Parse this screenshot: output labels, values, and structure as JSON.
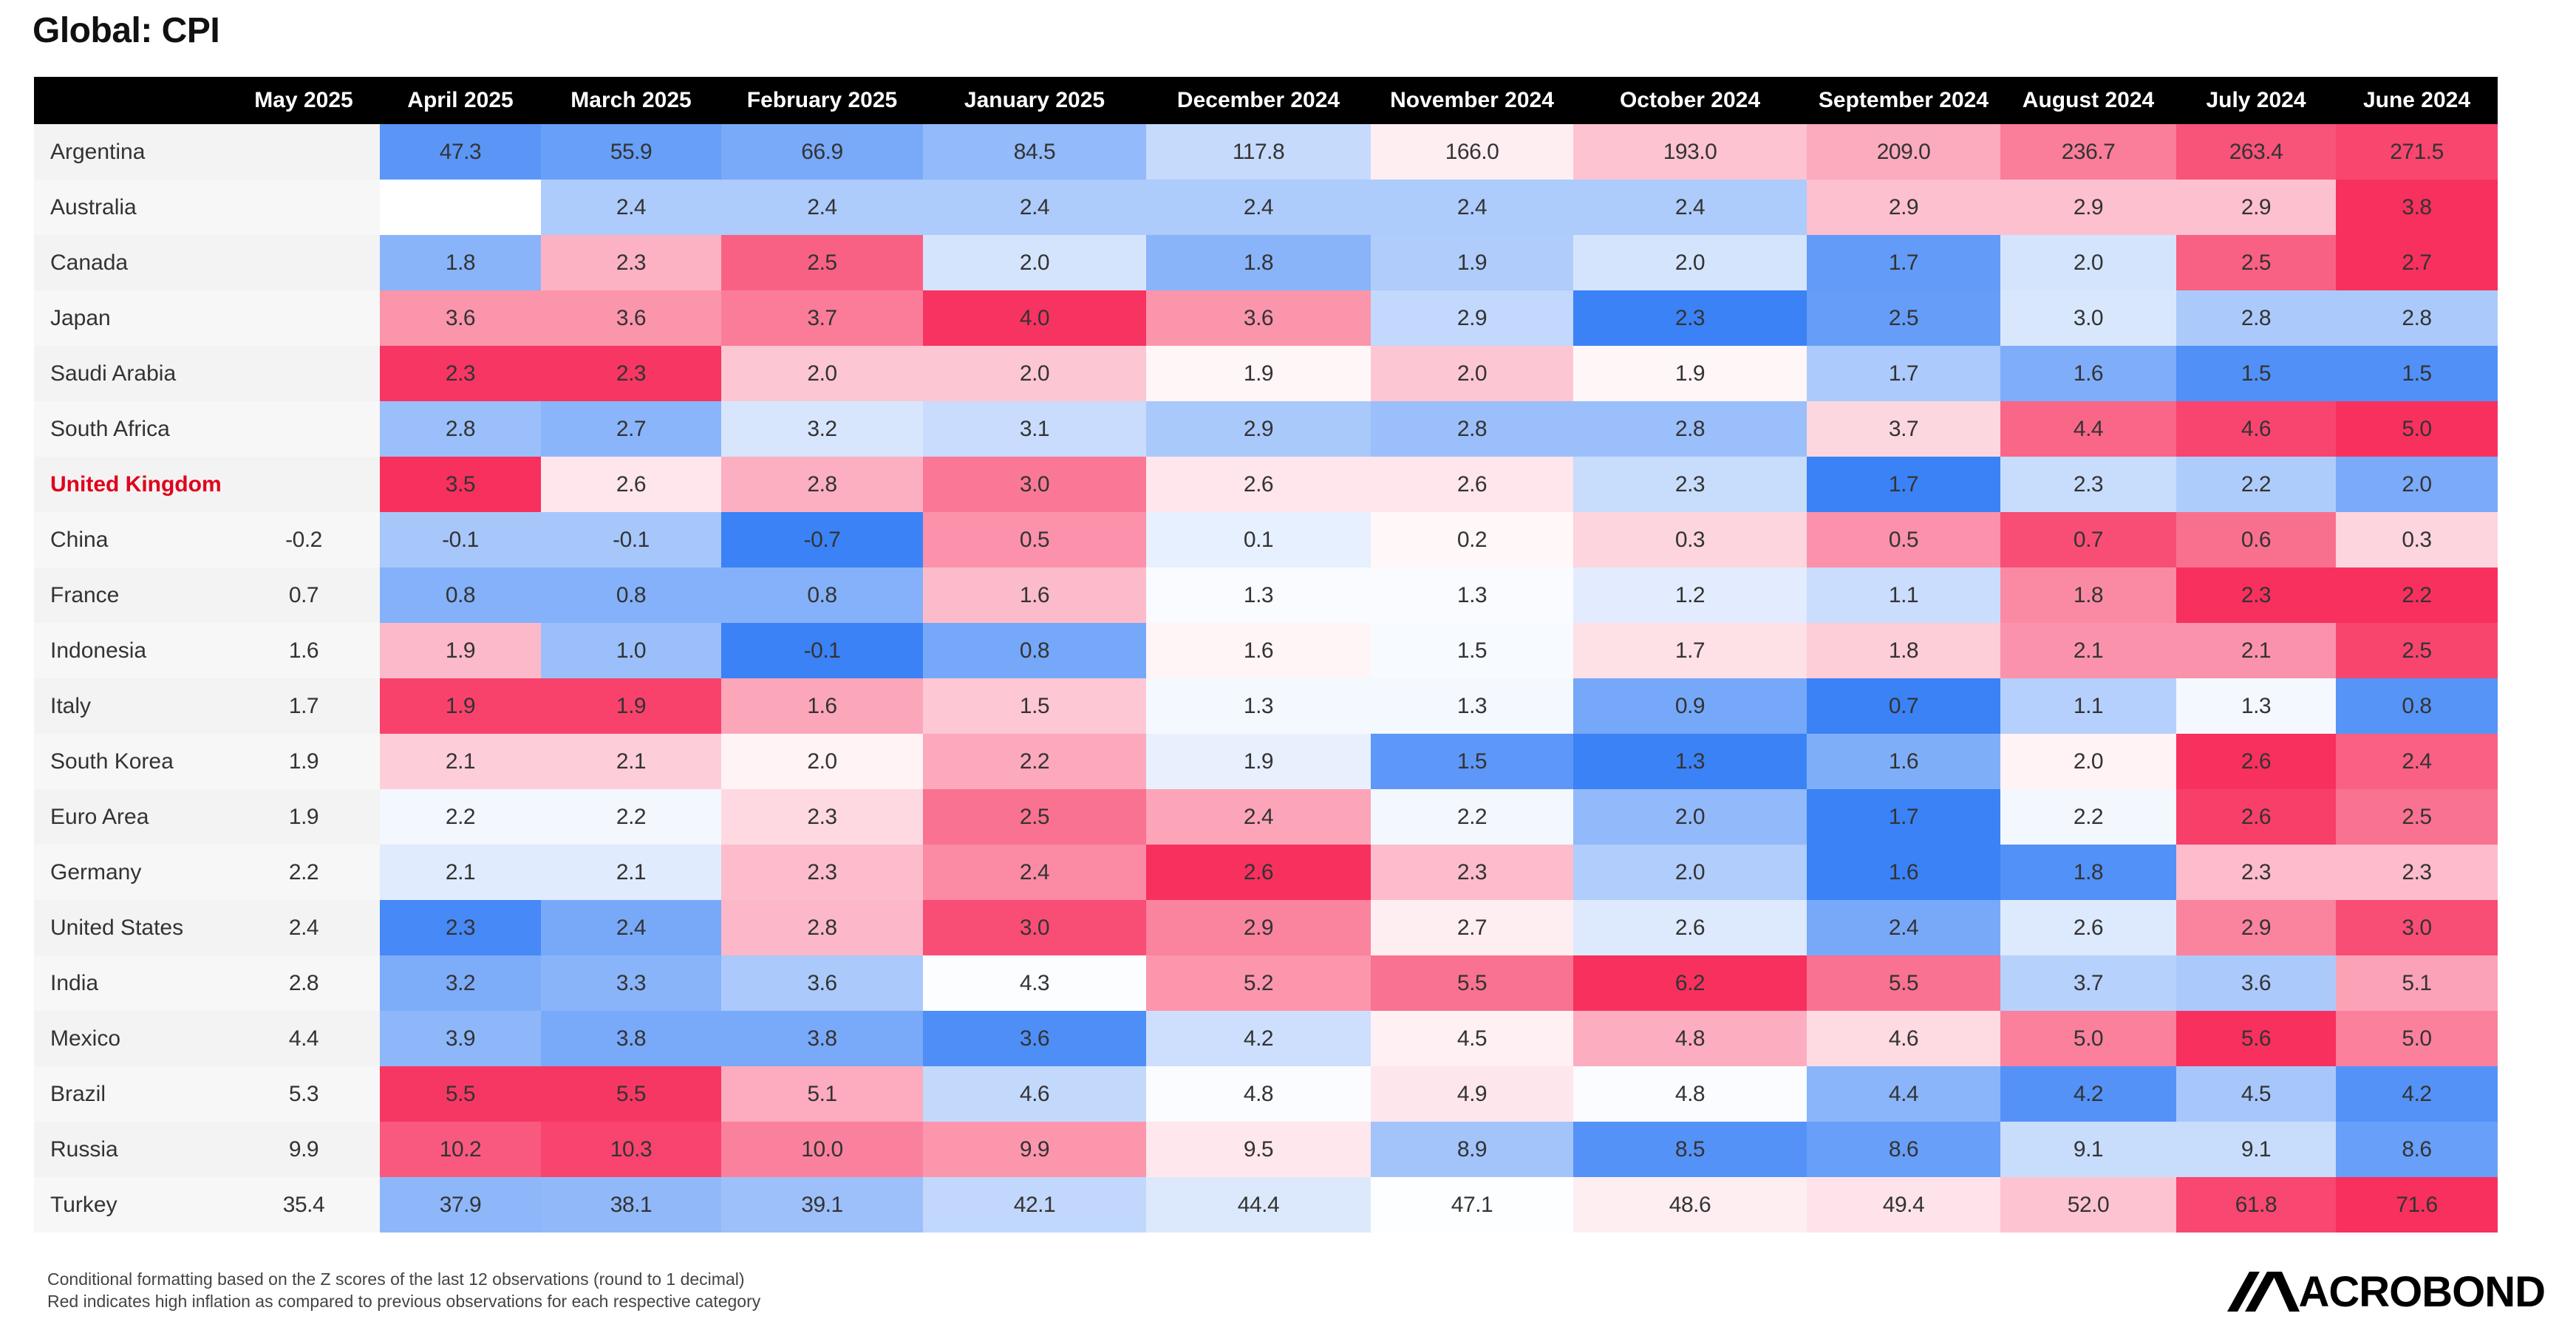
{
  "title": "Global: CPI",
  "colors": {
    "high": "#f7305e",
    "low": "#3b82f6",
    "neutral": "#ffffff",
    "highlight_label": "#e0001b"
  },
  "chart_data": {
    "type": "heatmap",
    "title": "Global: CPI",
    "columns": [
      "May 2025",
      "April 2025",
      "March 2025",
      "February 2025",
      "January 2025",
      "December 2024",
      "November 2024",
      "October 2024",
      "September 2024",
      "August 2024",
      "July 2024",
      "June 2024"
    ],
    "rows": [
      {
        "name": "Argentina",
        "values": [
          null,
          47.3,
          55.9,
          66.9,
          84.5,
          117.8,
          166.0,
          193.0,
          209.0,
          236.7,
          263.4,
          271.5
        ]
      },
      {
        "name": "Australia",
        "values": [
          null,
          null,
          2.4,
          2.4,
          2.4,
          2.4,
          2.4,
          2.4,
          2.9,
          2.9,
          2.9,
          3.8
        ]
      },
      {
        "name": "Canada",
        "values": [
          null,
          1.8,
          2.3,
          2.5,
          2.0,
          1.8,
          1.9,
          2.0,
          1.7,
          2.0,
          2.5,
          2.7
        ]
      },
      {
        "name": "Japan",
        "values": [
          null,
          3.6,
          3.6,
          3.7,
          4.0,
          3.6,
          2.9,
          2.3,
          2.5,
          3.0,
          2.8,
          2.8
        ]
      },
      {
        "name": "Saudi Arabia",
        "values": [
          null,
          2.3,
          2.3,
          2.0,
          2.0,
          1.9,
          2.0,
          1.9,
          1.7,
          1.6,
          1.5,
          1.5
        ]
      },
      {
        "name": "South Africa",
        "values": [
          null,
          2.8,
          2.7,
          3.2,
          3.1,
          2.9,
          2.8,
          2.8,
          3.7,
          4.4,
          4.6,
          5.0
        ]
      },
      {
        "name": "United Kingdom",
        "highlight": true,
        "values": [
          null,
          3.5,
          2.6,
          2.8,
          3.0,
          2.6,
          2.6,
          2.3,
          1.7,
          2.3,
          2.2,
          2.0
        ]
      },
      {
        "name": "China",
        "values": [
          -0.2,
          -0.1,
          -0.1,
          -0.7,
          0.5,
          0.1,
          0.2,
          0.3,
          0.5,
          0.7,
          0.6,
          0.3
        ]
      },
      {
        "name": "France",
        "values": [
          0.7,
          0.8,
          0.8,
          0.8,
          1.6,
          1.3,
          1.3,
          1.2,
          1.1,
          1.8,
          2.3,
          2.2
        ]
      },
      {
        "name": "Indonesia",
        "values": [
          1.6,
          1.9,
          1.0,
          -0.1,
          0.8,
          1.6,
          1.5,
          1.7,
          1.8,
          2.1,
          2.1,
          2.5
        ]
      },
      {
        "name": "Italy",
        "values": [
          1.7,
          1.9,
          1.9,
          1.6,
          1.5,
          1.3,
          1.3,
          0.9,
          0.7,
          1.1,
          1.3,
          0.8
        ]
      },
      {
        "name": "South Korea",
        "values": [
          1.9,
          2.1,
          2.1,
          2.0,
          2.2,
          1.9,
          1.5,
          1.3,
          1.6,
          2.0,
          2.6,
          2.4
        ]
      },
      {
        "name": "Euro Area",
        "values": [
          1.9,
          2.2,
          2.2,
          2.3,
          2.5,
          2.4,
          2.2,
          2.0,
          1.7,
          2.2,
          2.6,
          2.5
        ]
      },
      {
        "name": "Germany",
        "values": [
          2.2,
          2.1,
          2.1,
          2.3,
          2.4,
          2.6,
          2.3,
          2.0,
          1.6,
          1.8,
          2.3,
          2.3
        ]
      },
      {
        "name": "United States",
        "values": [
          2.4,
          2.3,
          2.4,
          2.8,
          3.0,
          2.9,
          2.7,
          2.6,
          2.4,
          2.6,
          2.9,
          3.0
        ]
      },
      {
        "name": "India",
        "values": [
          2.8,
          3.2,
          3.3,
          3.6,
          4.3,
          5.2,
          5.5,
          6.2,
          5.5,
          3.7,
          3.6,
          5.1
        ]
      },
      {
        "name": "Mexico",
        "values": [
          4.4,
          3.9,
          3.8,
          3.8,
          3.6,
          4.2,
          4.5,
          4.8,
          4.6,
          5.0,
          5.6,
          5.0
        ]
      },
      {
        "name": "Brazil",
        "values": [
          5.3,
          5.5,
          5.5,
          5.1,
          4.6,
          4.8,
          4.9,
          4.8,
          4.4,
          4.2,
          4.5,
          4.2
        ]
      },
      {
        "name": "Russia",
        "values": [
          9.9,
          10.2,
          10.3,
          10.0,
          9.9,
          9.5,
          8.9,
          8.5,
          8.6,
          9.1,
          9.1,
          8.6
        ]
      },
      {
        "name": "Turkey",
        "values": [
          35.4,
          37.9,
          38.1,
          39.1,
          42.1,
          44.4,
          47.1,
          48.6,
          49.4,
          52.0,
          61.8,
          71.6
        ]
      }
    ]
  },
  "footnote": [
    "Conditional formatting based on the Z scores of the last 12 observations (round to 1 decimal)",
    "Red indicates high inflation as compared to previous observations for each respective category"
  ],
  "logo": {
    "text": "ACROBOND",
    "icon": "macrobond-logo-icon"
  }
}
